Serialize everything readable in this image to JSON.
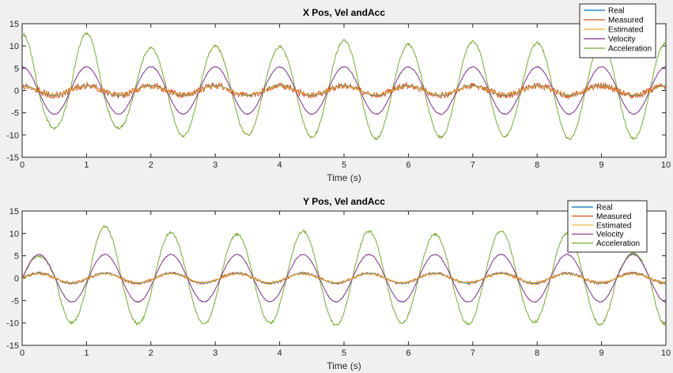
{
  "chart_data": [
    {
      "type": "line",
      "title": "X Pos, Vel andAcc",
      "xlabel": "Time (s)",
      "ylabel": "",
      "xlim": [
        0,
        10
      ],
      "ylim": [
        -15,
        15
      ],
      "xticks": [
        0,
        1,
        2,
        3,
        4,
        5,
        6,
        7,
        8,
        9,
        10
      ],
      "yticks": [
        -15,
        -10,
        -5,
        0,
        5,
        10,
        15
      ],
      "grid": false,
      "legend_position": "top-right",
      "series": [
        {
          "name": "Real",
          "color": "#0072bd",
          "description": "sinusoid",
          "x_range": [
            0,
            10
          ],
          "amplitude": 1.1,
          "frequency_hz": 1.0,
          "peak_times": [
            1.0,
            2.0,
            3.0,
            4.0,
            5.0,
            6.0,
            7.0,
            8.0,
            9.0,
            10.0
          ]
        },
        {
          "name": "Measured",
          "color": "#d95319",
          "description": "noisy sinusoid",
          "x_range": [
            0,
            10
          ],
          "amplitude": 1.1,
          "frequency_hz": 1.0,
          "noise_amplitude": 0.9
        },
        {
          "name": "Estimated",
          "color": "#edb120",
          "description": "sinusoid",
          "x_range": [
            0,
            10
          ],
          "amplitude": 1.0,
          "frequency_hz": 1.0
        },
        {
          "name": "Velocity",
          "color": "#7e2f8e",
          "description": "sinusoid",
          "x_range": [
            0,
            10
          ],
          "amplitude": 5.3,
          "frequency_hz": 1.0,
          "peak_times": [
            1.0,
            2.0,
            3.0,
            4.0,
            5.0,
            6.0,
            7.0,
            8.0,
            9.0,
            10.0
          ]
        },
        {
          "name": "Acceleration",
          "color": "#77ac30",
          "description": "sinusoid",
          "x_range": [
            0,
            10
          ],
          "amplitude": 10.5,
          "frequency_hz": 1.0,
          "peak_values": [
            12.8,
            9.5,
            10.0,
            9.8,
            11.2,
            10.3,
            11.0,
            10.7,
            10.8
          ],
          "trough_values": [
            -8.5,
            -10.2,
            -10.0,
            -10.5,
            -10.8,
            -10.5,
            -10.3,
            -10.9,
            -10.8,
            -9.5
          ]
        }
      ]
    },
    {
      "type": "line",
      "title": "Y Pos, Vel andAcc",
      "xlabel": "Time (s)",
      "ylabel": "",
      "xlim": [
        0,
        10
      ],
      "ylim": [
        -15,
        15
      ],
      "xticks": [
        0,
        1,
        2,
        3,
        4,
        5,
        6,
        7,
        8,
        9,
        10
      ],
      "yticks": [
        -15,
        -10,
        -5,
        0,
        5,
        10,
        15
      ],
      "grid": false,
      "legend_position": "top-right",
      "series": [
        {
          "name": "Real",
          "color": "#0072bd",
          "description": "sinusoid",
          "x_range": [
            0,
            10
          ],
          "amplitude": 1.1,
          "frequency_hz": 0.975,
          "peak_times": [
            0.26,
            1.28,
            2.3,
            3.3,
            4.3,
            5.35,
            6.35,
            7.35,
            8.35,
            9.35
          ]
        },
        {
          "name": "Measured",
          "color": "#d95319",
          "description": "noisy sinusoid",
          "x_range": [
            0,
            10
          ],
          "amplitude": 1.1,
          "frequency_hz": 0.975,
          "noise_amplitude": 0.4
        },
        {
          "name": "Estimated",
          "color": "#edb120",
          "description": "sinusoid",
          "x_range": [
            0,
            10
          ],
          "amplitude": 1.0,
          "frequency_hz": 0.975
        },
        {
          "name": "Velocity",
          "color": "#7e2f8e",
          "description": "sinusoid",
          "x_range": [
            0,
            10
          ],
          "amplitude": 5.3,
          "frequency_hz": 0.975,
          "peak_times": [
            0.26,
            1.28,
            2.3,
            3.3,
            4.3,
            5.35,
            6.35,
            7.35,
            8.35,
            9.35
          ]
        },
        {
          "name": "Acceleration",
          "color": "#77ac30",
          "description": "sinusoid",
          "x_range": [
            0,
            10
          ],
          "amplitude": 10.0,
          "frequency_hz": 0.975,
          "peak_values": [
            5.0,
            11.5,
            10.2,
            9.8,
            10.5,
            10.5,
            9.8,
            10.6,
            10.0,
            5.5
          ],
          "trough_values": [
            -10.0,
            -10.2,
            -10.3,
            -10.0,
            -10.5,
            -10.0,
            -10.2,
            -9.8,
            -10.3,
            -10.5
          ]
        }
      ]
    }
  ]
}
